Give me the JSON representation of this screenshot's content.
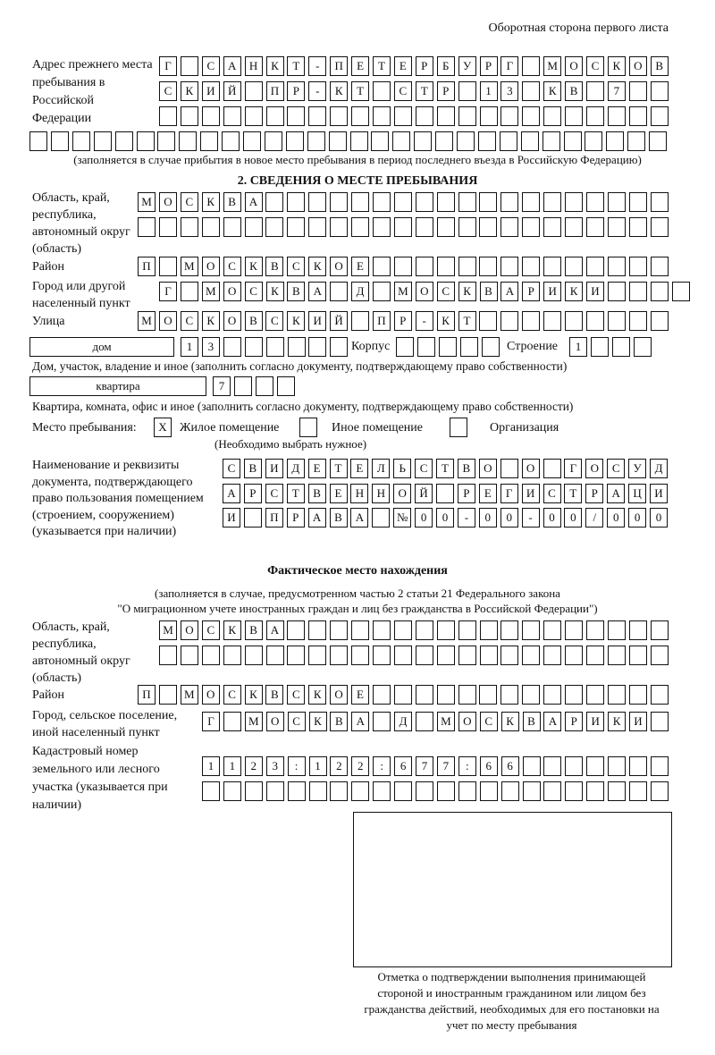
{
  "page_header": "Оборотная сторона первого листа",
  "prev_address": {
    "label": "Адрес прежнего места пребывания в Российской Федерации",
    "rows": [
      [
        "Г",
        "",
        "С",
        "А",
        "Н",
        "К",
        "Т",
        "-",
        "П",
        "Е",
        "Т",
        "Е",
        "Р",
        "Б",
        "У",
        "Р",
        "Г",
        "",
        "М",
        "О",
        "С",
        "К",
        "О",
        "В"
      ],
      [
        "С",
        "К",
        "И",
        "Й",
        "",
        "П",
        "Р",
        "-",
        "К",
        "Т",
        "",
        "С",
        "Т",
        "Р",
        "",
        "1",
        "3",
        "",
        "К",
        "В",
        "",
        "7",
        "",
        ""
      ],
      [
        "",
        "",
        "",
        "",
        "",
        "",
        "",
        "",
        "",
        "",
        "",
        "",
        "",
        "",
        "",
        "",
        "",
        "",
        "",
        "",
        "",
        "",
        "",
        ""
      ],
      [
        "",
        "",
        "",
        "",
        "",
        "",
        "",
        "",
        "",
        "",
        "",
        "",
        "",
        "",
        "",
        "",
        "",
        "",
        "",
        "",
        "",
        "",
        "",
        "",
        "",
        "",
        "",
        "",
        "",
        ""
      ]
    ],
    "note": "(заполняется в случае прибытия в новое место пребывания в период последнего въезда в Российскую Федерацию)"
  },
  "section2": {
    "title": "2. СВЕДЕНИЯ О МЕСТЕ ПРЕБЫВАНИЯ",
    "region_label": "Область, край, республика, автономный округ (область)",
    "region_rows": [
      [
        "М",
        "О",
        "С",
        "К",
        "В",
        "А",
        "",
        "",
        "",
        "",
        "",
        "",
        "",
        "",
        "",
        "",
        "",
        "",
        "",
        "",
        "",
        "",
        "",
        "",
        ""
      ],
      [
        "",
        "",
        "",
        "",
        "",
        "",
        "",
        "",
        "",
        "",
        "",
        "",
        "",
        "",
        "",
        "",
        "",
        "",
        "",
        "",
        "",
        "",
        "",
        "",
        ""
      ]
    ],
    "district_label": "Район",
    "district": [
      "П",
      "",
      "М",
      "О",
      "С",
      "К",
      "В",
      "С",
      "К",
      "О",
      "Е",
      "",
      "",
      "",
      "",
      "",
      "",
      "",
      "",
      "",
      "",
      "",
      "",
      "",
      ""
    ],
    "city_label": "Город или другой населенный пункт",
    "city": [
      "Г",
      "",
      "М",
      "О",
      "С",
      "К",
      "В",
      "А",
      "",
      "Д",
      "",
      "М",
      "О",
      "С",
      "К",
      "В",
      "А",
      "Р",
      "И",
      "К",
      "И",
      "",
      "",
      "",
      ""
    ],
    "street_label": "Улица",
    "street": [
      "М",
      "О",
      "С",
      "К",
      "О",
      "В",
      "С",
      "К",
      "И",
      "Й",
      "",
      "П",
      "Р",
      "-",
      "К",
      "Т",
      "",
      "",
      "",
      "",
      "",
      "",
      "",
      "",
      ""
    ],
    "house_type": "дом",
    "house": [
      "1",
      "3",
      "",
      "",
      "",
      "",
      "",
      ""
    ],
    "korpus_label": "Корпус",
    "korpus": [
      "",
      "",
      "",
      "",
      ""
    ],
    "building_label": "Строение",
    "building": [
      "1",
      "",
      "",
      ""
    ],
    "house_note": "Дом, участок, владение и иное (заполнить согласно документу, подтверждающему право собственности)",
    "flat_type": "квартира",
    "flat": [
      "7",
      "",
      "",
      ""
    ],
    "flat_note": "Квартира, комната, офис и иное (заполнить согласно документу, подтверждающему право собственности)",
    "place_label": "Место пребывания:",
    "place_options": [
      {
        "mark": "X",
        "label": "Жилое помещение",
        "checked": true
      },
      {
        "mark": "",
        "label": "Иное помещение",
        "checked": false
      },
      {
        "mark": "",
        "label": "Организация",
        "checked": false
      }
    ],
    "place_note": "(Необходимо выбрать нужное)",
    "doc_label": "Наименование и реквизиты документа, подтверждающего право пользования помещением (строением, сооружением) (указывается при наличии)",
    "doc_rows": [
      [
        "С",
        "В",
        "И",
        "Д",
        "Е",
        "Т",
        "Е",
        "Л",
        "Ь",
        "С",
        "Т",
        "В",
        "О",
        "",
        "О",
        "",
        "Г",
        "О",
        "С",
        "У",
        "Д"
      ],
      [
        "А",
        "Р",
        "С",
        "Т",
        "В",
        "Е",
        "Н",
        "Н",
        "О",
        "Й",
        "",
        "Р",
        "Е",
        "Г",
        "И",
        "С",
        "Т",
        "Р",
        "А",
        "Ц",
        "И"
      ],
      [
        "И",
        "",
        "П",
        "Р",
        "А",
        "В",
        "А",
        "",
        "№",
        "0",
        "0",
        "-",
        "0",
        "0",
        "-",
        "0",
        "0",
        "/",
        "0",
        "0",
        "0"
      ]
    ]
  },
  "actual": {
    "title": "Фактическое место нахождения",
    "note1": "(заполняется в случае, предусмотренном частью 2 статьи 21 Федерального закона",
    "note2": "\"О миграционном учете иностранных граждан и лиц без гражданства в Российской Федерации\")",
    "region_label": "Область, край, республика, автономный округ (область)",
    "region_rows": [
      [
        "М",
        "О",
        "С",
        "К",
        "В",
        "А",
        "",
        "",
        "",
        "",
        "",
        "",
        "",
        "",
        "",
        "",
        "",
        "",
        "",
        "",
        "",
        "",
        "",
        ""
      ],
      [
        "",
        "",
        "",
        "",
        "",
        "",
        "",
        "",
        "",
        "",
        "",
        "",
        "",
        "",
        "",
        "",
        "",
        "",
        "",
        "",
        "",
        "",
        "",
        ""
      ]
    ],
    "district_label": "Район",
    "district": [
      "П",
      "",
      "М",
      "О",
      "С",
      "К",
      "В",
      "С",
      "К",
      "О",
      "Е",
      "",
      "",
      "",
      "",
      "",
      "",
      "",
      "",
      "",
      "",
      "",
      "",
      "",
      ""
    ],
    "city_label": "Город, сельское поселение, иной населенный пункт",
    "city": [
      "Г",
      "",
      "М",
      "О",
      "С",
      "К",
      "В",
      "А",
      "",
      "Д",
      "",
      "М",
      "О",
      "С",
      "К",
      "В",
      "А",
      "Р",
      "И",
      "К",
      "И",
      ""
    ],
    "cadastral_label": "Кадастровый номер земельного или лесного участка (указывается при наличии)",
    "cadastral_rows": [
      [
        "1",
        "1",
        "2",
        "3",
        ":",
        "1",
        "2",
        "2",
        ":",
        "6",
        "7",
        "7",
        ":",
        "6",
        "6",
        "",
        "",
        "",
        "",
        "",
        "",
        ""
      ],
      [
        "",
        "",
        "",
        "",
        "",
        "",
        "",
        "",
        "",
        "",
        "",
        "",
        "",
        "",
        "",
        "",
        "",
        "",
        "",
        "",
        "",
        ""
      ]
    ]
  },
  "stamp_caption": "Отметка о подтверждении выполнения принимающей стороной и иностранным гражданином или лицом без гражданства действий, необходимых для его постановки на учет по месту пребывания"
}
